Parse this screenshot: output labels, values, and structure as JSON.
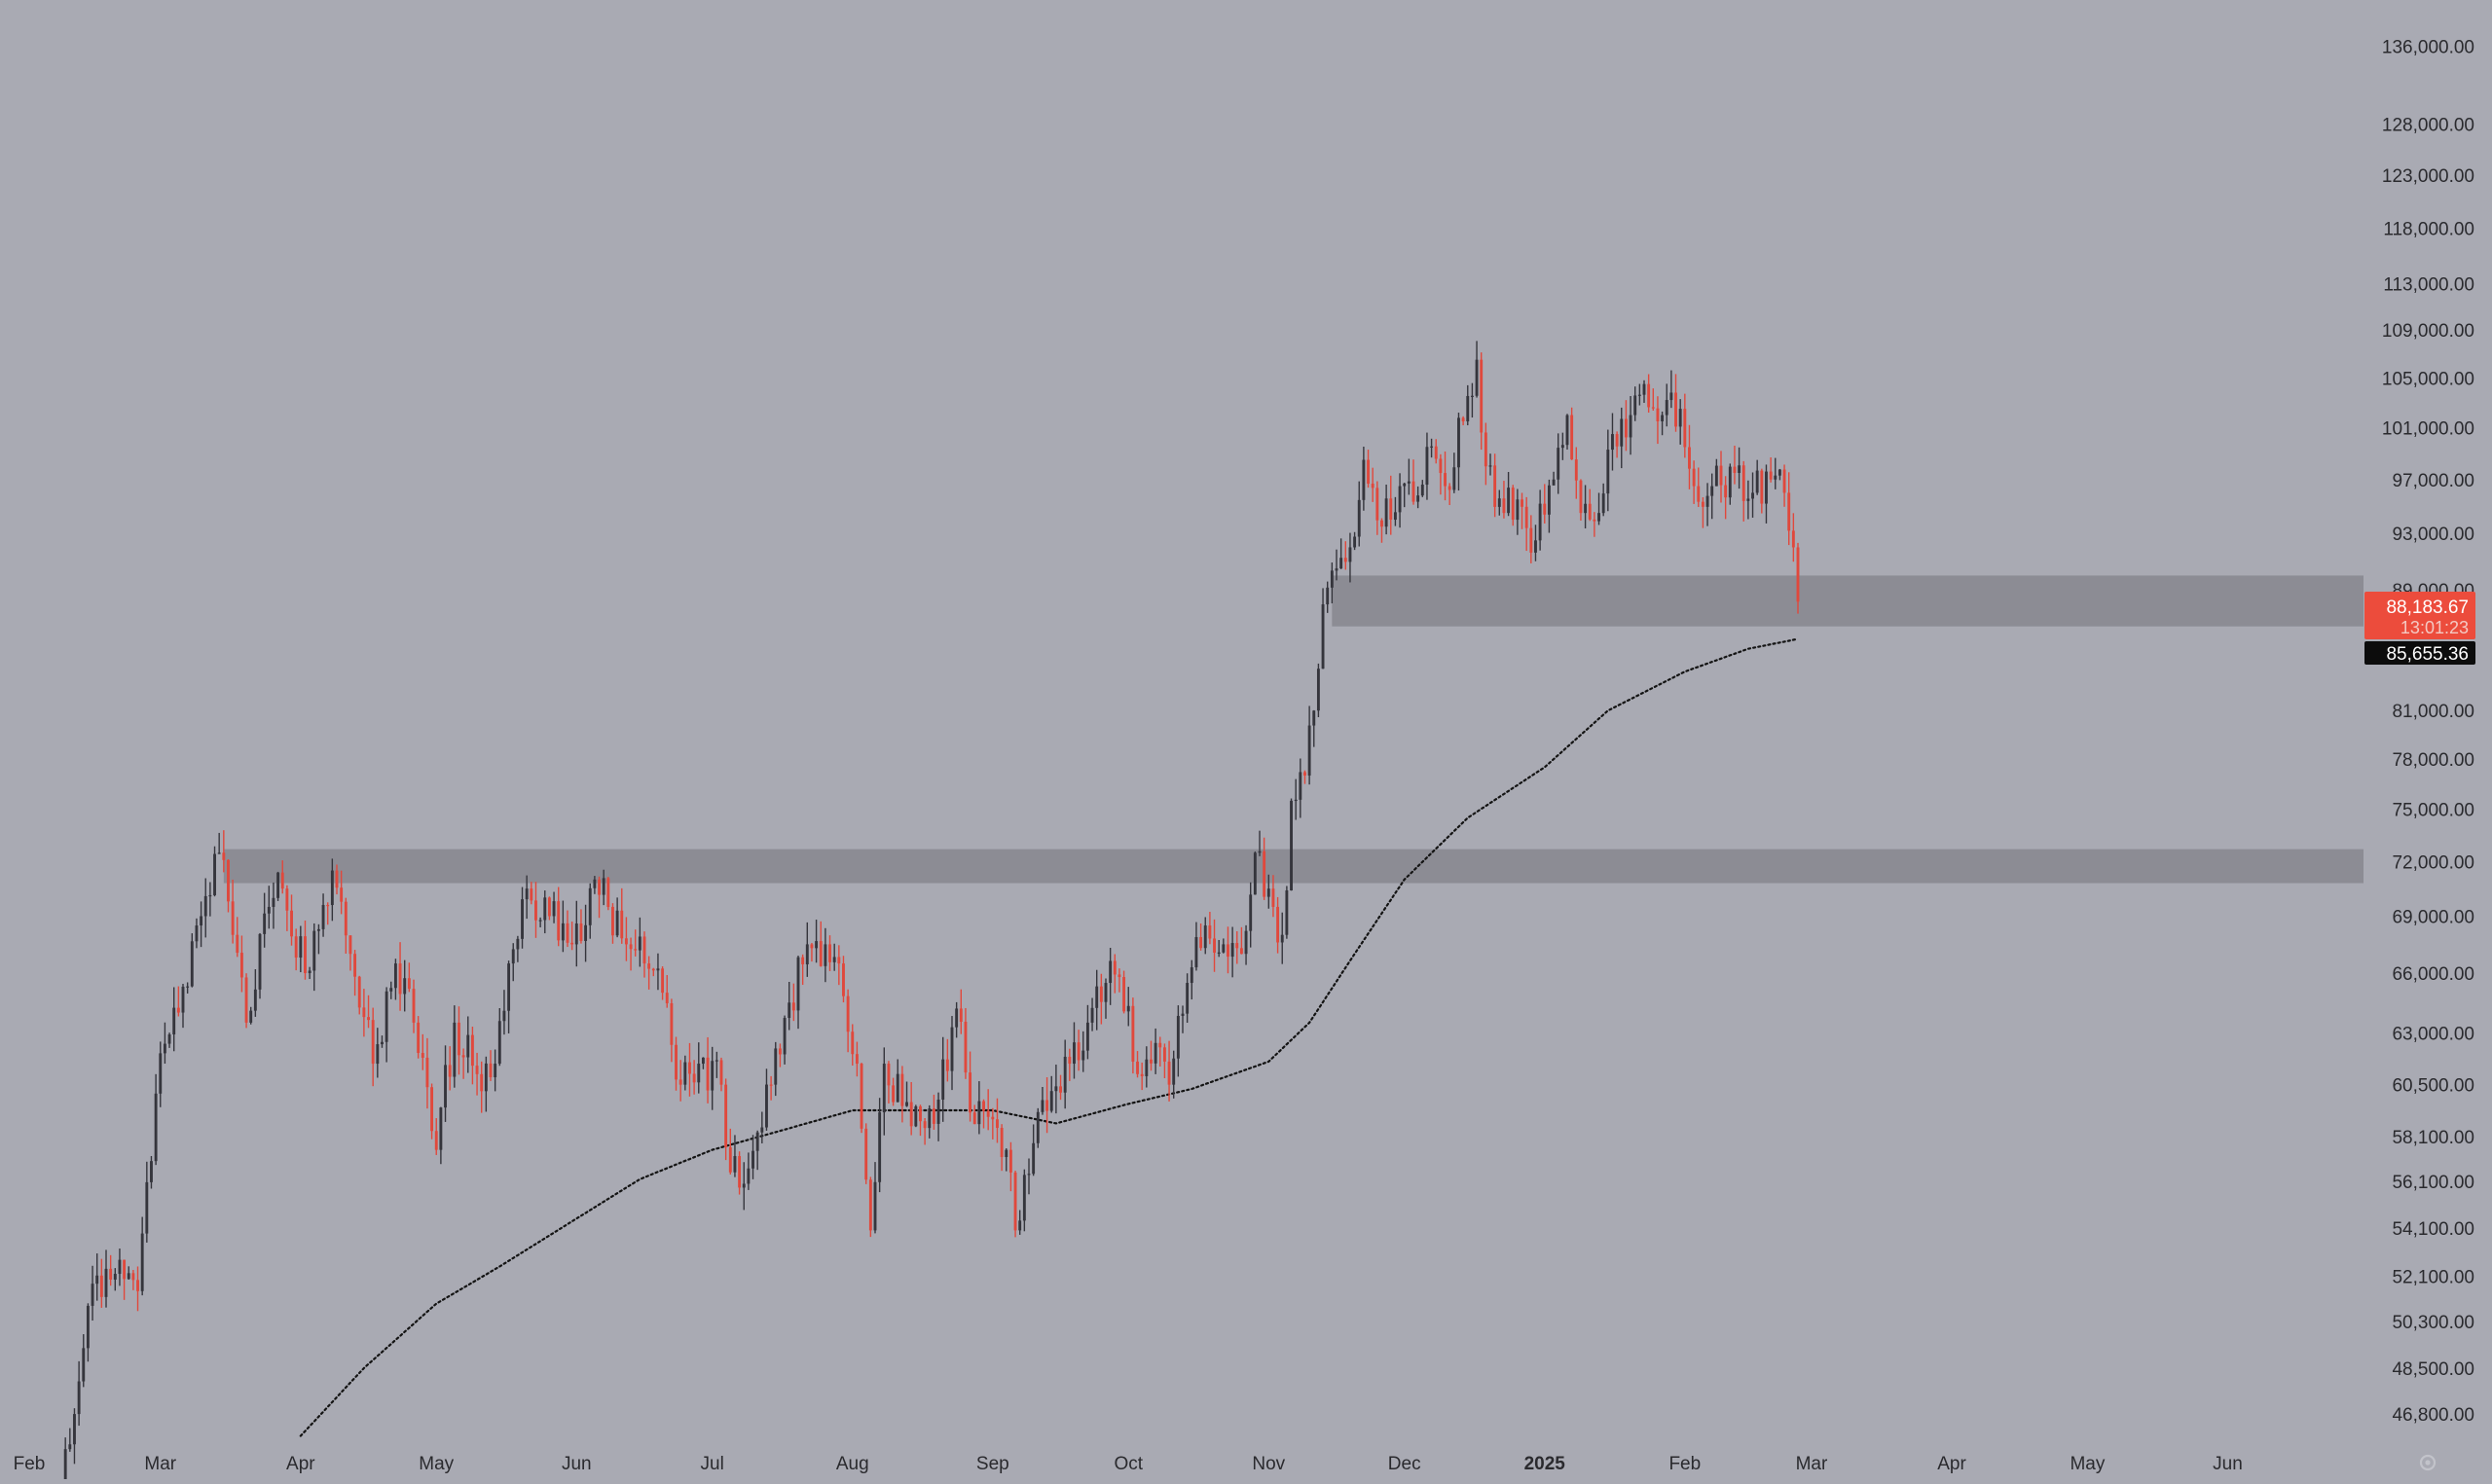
{
  "chart_data": {
    "type": "candlestick",
    "y_scale": "log",
    "ylim": [
      45500,
      141000
    ],
    "xlim": [
      "2024-02-01",
      "2025-06-25"
    ],
    "grid": false,
    "y_tick_labels": [
      "136,000.00",
      "128,000.00",
      "123,000.00",
      "118,000.00",
      "113,000.00",
      "109,000.00",
      "105,000.00",
      "101,000.00",
      "97,000.00",
      "93,000.00",
      "89,000.00",
      "81,000.00",
      "78,000.00",
      "75,000.00",
      "72,000.00",
      "69,000.00",
      "66,000.00",
      "63,000.00",
      "60,500.00",
      "58,100.00",
      "56,100.00",
      "54,100.00",
      "52,100.00",
      "50,300.00",
      "48,500.00",
      "46,800.00"
    ],
    "x_tick_labels": [
      {
        "label": "Feb",
        "date": "2024-02-01"
      },
      {
        "label": "Mar",
        "date": "2024-03-01"
      },
      {
        "label": "Apr",
        "date": "2024-04-01"
      },
      {
        "label": "May",
        "date": "2024-05-01"
      },
      {
        "label": "Jun",
        "date": "2024-06-01"
      },
      {
        "label": "Jul",
        "date": "2024-07-01"
      },
      {
        "label": "Aug",
        "date": "2024-08-01"
      },
      {
        "label": "Sep",
        "date": "2024-09-01"
      },
      {
        "label": "Oct",
        "date": "2024-10-01"
      },
      {
        "label": "Nov",
        "date": "2024-11-01"
      },
      {
        "label": "Dec",
        "date": "2024-12-01"
      },
      {
        "label": "2025",
        "date": "2025-01-01",
        "bold": true
      },
      {
        "label": "Feb",
        "date": "2025-02-01"
      },
      {
        "label": "Mar",
        "date": "2025-03-01"
      },
      {
        "label": "Apr",
        "date": "2025-04-01"
      },
      {
        "label": "May",
        "date": "2025-05-01"
      },
      {
        "label": "Jun",
        "date": "2025-06-01"
      }
    ],
    "candle_anchors": [
      [
        "2024-02-07",
        43000
      ],
      [
        "2024-02-12",
        48000
      ],
      [
        "2024-02-15",
        51800
      ],
      [
        "2024-02-20",
        52200
      ],
      [
        "2024-02-25",
        51500
      ],
      [
        "2024-02-28",
        57000
      ],
      [
        "2024-03-01",
        62000
      ],
      [
        "2024-03-05",
        64000
      ],
      [
        "2024-03-09",
        68500
      ],
      [
        "2024-03-14",
        72500
      ],
      [
        "2024-03-17",
        68000
      ],
      [
        "2024-03-20",
        63500
      ],
      [
        "2024-03-25",
        69500
      ],
      [
        "2024-03-28",
        70500
      ],
      [
        "2024-04-02",
        66000
      ],
      [
        "2024-04-08",
        71500
      ],
      [
        "2024-04-12",
        67000
      ],
      [
        "2024-04-17",
        61500
      ],
      [
        "2024-04-22",
        66500
      ],
      [
        "2024-04-26",
        63500
      ],
      [
        "2024-05-01",
        57500
      ],
      [
        "2024-05-05",
        63500
      ],
      [
        "2024-05-10",
        61000
      ],
      [
        "2024-05-14",
        61500
      ],
      [
        "2024-05-17",
        66500
      ],
      [
        "2024-05-21",
        70500
      ],
      [
        "2024-05-26",
        69000
      ],
      [
        "2024-05-31",
        67500
      ],
      [
        "2024-06-05",
        71000
      ],
      [
        "2024-06-08",
        69500
      ],
      [
        "2024-06-12",
        67500
      ],
      [
        "2024-06-16",
        66500
      ],
      [
        "2024-06-20",
        65000
      ],
      [
        "2024-06-24",
        60500
      ],
      [
        "2024-06-28",
        61500
      ],
      [
        "2024-07-03",
        60500
      ],
      [
        "2024-07-05",
        56500
      ],
      [
        "2024-07-08",
        56000
      ],
      [
        "2024-07-14",
        60500
      ],
      [
        "2024-07-18",
        64500
      ],
      [
        "2024-07-22",
        67500
      ],
      [
        "2024-07-26",
        67500
      ],
      [
        "2024-07-29",
        66500
      ],
      [
        "2024-08-02",
        61500
      ],
      [
        "2024-08-05",
        54000
      ],
      [
        "2024-08-08",
        61500
      ],
      [
        "2024-08-12",
        59500
      ],
      [
        "2024-08-16",
        58800
      ],
      [
        "2024-08-20",
        59800
      ],
      [
        "2024-08-24",
        64200
      ],
      [
        "2024-08-27",
        59200
      ],
      [
        "2024-08-31",
        59000
      ],
      [
        "2024-09-04",
        57500
      ],
      [
        "2024-09-06",
        54000
      ],
      [
        "2024-09-10",
        57800
      ],
      [
        "2024-09-14",
        60200
      ],
      [
        "2024-09-18",
        61500
      ],
      [
        "2024-09-22",
        63500
      ],
      [
        "2024-09-26",
        65500
      ],
      [
        "2024-09-29",
        65800
      ],
      [
        "2024-10-03",
        61000
      ],
      [
        "2024-10-07",
        62500
      ],
      [
        "2024-10-10",
        60500
      ],
      [
        "2024-10-14",
        65500
      ],
      [
        "2024-10-18",
        68500
      ],
      [
        "2024-10-22",
        67500
      ],
      [
        "2024-10-26",
        67000
      ],
      [
        "2024-10-29",
        72500
      ],
      [
        "2024-11-02",
        69500
      ],
      [
        "2024-11-04",
        68000
      ],
      [
        "2024-11-06",
        75500
      ],
      [
        "2024-11-09",
        77000
      ],
      [
        "2024-11-11",
        81000
      ],
      [
        "2024-11-13",
        88000
      ],
      [
        "2024-11-16",
        90500
      ],
      [
        "2024-11-19",
        92000
      ],
      [
        "2024-11-22",
        98500
      ],
      [
        "2024-11-26",
        93500
      ],
      [
        "2024-11-30",
        96500
      ],
      [
        "2024-12-04",
        95800
      ],
      [
        "2024-12-06",
        99500
      ],
      [
        "2024-12-10",
        96500
      ],
      [
        "2024-12-14",
        101500
      ],
      [
        "2024-12-17",
        106500
      ],
      [
        "2024-12-19",
        98000
      ],
      [
        "2024-12-23",
        94500
      ],
      [
        "2024-12-26",
        95500
      ],
      [
        "2024-12-30",
        92500
      ],
      [
        "2025-01-03",
        97000
      ],
      [
        "2025-01-06",
        102000
      ],
      [
        "2025-01-09",
        94500
      ],
      [
        "2025-01-13",
        94500
      ],
      [
        "2025-01-16",
        100500
      ],
      [
        "2025-01-20",
        102000
      ],
      [
        "2025-01-23",
        104500
      ],
      [
        "2025-01-27",
        102000
      ],
      [
        "2025-01-31",
        102500
      ],
      [
        "2025-02-03",
        96500
      ],
      [
        "2025-02-07",
        96500
      ],
      [
        "2025-02-12",
        97500
      ],
      [
        "2025-02-16",
        96000
      ],
      [
        "2025-02-20",
        97000
      ],
      [
        "2025-02-23",
        96000
      ],
      [
        "2025-02-25",
        92000
      ],
      [
        "2025-02-26",
        88183
      ]
    ],
    "ma_anchors": [
      [
        "2024-04-01",
        46000
      ],
      [
        "2024-04-15",
        48500
      ],
      [
        "2024-05-01",
        51000
      ],
      [
        "2024-05-15",
        52500
      ],
      [
        "2024-06-01",
        54500
      ],
      [
        "2024-06-15",
        56200
      ],
      [
        "2024-07-01",
        57500
      ],
      [
        "2024-07-15",
        58300
      ],
      [
        "2024-08-01",
        59300
      ],
      [
        "2024-08-15",
        59300
      ],
      [
        "2024-09-01",
        59300
      ],
      [
        "2024-09-15",
        58700
      ],
      [
        "2024-10-01",
        59600
      ],
      [
        "2024-10-15",
        60300
      ],
      [
        "2024-11-01",
        61600
      ],
      [
        "2024-11-10",
        63500
      ],
      [
        "2024-11-20",
        67000
      ],
      [
        "2024-12-01",
        71000
      ],
      [
        "2024-12-15",
        74500
      ],
      [
        "2025-01-01",
        77500
      ],
      [
        "2025-01-15",
        81000
      ],
      [
        "2025-02-01",
        83500
      ],
      [
        "2025-02-15",
        85000
      ],
      [
        "2025-02-26",
        85655
      ]
    ],
    "zones": [
      {
        "from": 86500,
        "to": 90000,
        "start": "2024-11-15"
      },
      {
        "from": 70800,
        "to": 72700,
        "start": "2024-03-15"
      }
    ],
    "last_price": "88,183.67",
    "countdown": "13:01:23",
    "ma_value": "85,655.36",
    "colors": {
      "background": "#a9aab3",
      "up": "#35353c",
      "down": "#e0483c",
      "zone": "#8c8c94",
      "ma": "#141414",
      "axis_text": "#2a2a2e",
      "price_tag": "#ec4c3c",
      "ma_tag": "#0c0c0c"
    }
  }
}
